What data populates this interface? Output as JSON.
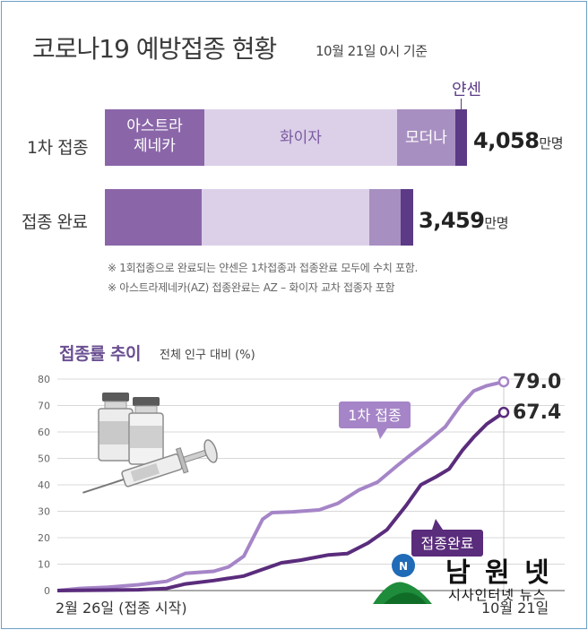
{
  "title": "코로나19 예방접종 현황",
  "date": "10월 21일 0시 기준",
  "bars": {
    "first": {
      "label": "1차 접종",
      "total": "4,058",
      "unit": "만명",
      "segments": {
        "az": "아스트라\n제네카",
        "pfizer": "화이자",
        "moderna": "모더나",
        "janssen": "얀센"
      }
    },
    "complete": {
      "label": "접종 완료",
      "total": "3,459",
      "unit": "만명"
    }
  },
  "notes": [
    "※ 1회접종으로 완료되는 얀센은 1차접종과 접종완료 모두에 수치 포함.",
    "※ 아스트라제네카(AZ) 접종완료는 AZ – 화이자 교차 접종자 포함"
  ],
  "trend": {
    "title": "접종률 추이",
    "subtitle": "전체 인구 대비 (%)"
  },
  "colors": {
    "az": "#8a66a9",
    "pfizer": "#dcd0e9",
    "moderna": "#a88fc1",
    "janssen": "#5c3a86",
    "first_line": "#a585c7",
    "complete_line": "#5a2c7c"
  },
  "chart_data": {
    "type": "line",
    "xlabel": "",
    "ylabel": "전체 인구 대비 (%)",
    "ylim": [
      0,
      80
    ],
    "yticks": [
      0,
      10,
      20,
      30,
      40,
      50,
      60,
      70,
      80
    ],
    "xlabels": {
      "start": "2월 26일 (접종 시작)",
      "end": "10월 21일"
    },
    "x_range": [
      "2021-02-26",
      "2021-10-21"
    ],
    "series": [
      {
        "name": "1차 접종",
        "end_label": "79.0",
        "points": [
          [
            "2021-02-26",
            0
          ],
          [
            "2021-03-10",
            0.8
          ],
          [
            "2021-03-25",
            1.3
          ],
          [
            "2021-04-10",
            2.2
          ],
          [
            "2021-04-25",
            3.5
          ],
          [
            "2021-05-05",
            6.5
          ],
          [
            "2021-05-20",
            7.3
          ],
          [
            "2021-05-28",
            9.0
          ],
          [
            "2021-06-05",
            13
          ],
          [
            "2021-06-10",
            20
          ],
          [
            "2021-06-15",
            27
          ],
          [
            "2021-06-20",
            29.5
          ],
          [
            "2021-07-01",
            29.8
          ],
          [
            "2021-07-15",
            30.5
          ],
          [
            "2021-07-25",
            33
          ],
          [
            "2021-08-05",
            38
          ],
          [
            "2021-08-15",
            41
          ],
          [
            "2021-08-25",
            47
          ],
          [
            "2021-09-01",
            51
          ],
          [
            "2021-09-10",
            56
          ],
          [
            "2021-09-20",
            62
          ],
          [
            "2021-09-28",
            70
          ],
          [
            "2021-10-05",
            75.5
          ],
          [
            "2021-10-12",
            77.5
          ],
          [
            "2021-10-21",
            79.0
          ]
        ]
      },
      {
        "name": "접종완료",
        "end_label": "67.4",
        "points": [
          [
            "2021-02-26",
            0
          ],
          [
            "2021-04-10",
            0.3
          ],
          [
            "2021-04-25",
            0.8
          ],
          [
            "2021-05-05",
            2.5
          ],
          [
            "2021-05-20",
            3.8
          ],
          [
            "2021-06-05",
            5.5
          ],
          [
            "2021-06-15",
            8.0
          ],
          [
            "2021-06-25",
            10.5
          ],
          [
            "2021-07-05",
            11.5
          ],
          [
            "2021-07-20",
            13.5
          ],
          [
            "2021-07-30",
            14.0
          ],
          [
            "2021-08-10",
            18
          ],
          [
            "2021-08-20",
            23
          ],
          [
            "2021-08-30",
            32
          ],
          [
            "2021-09-07",
            40
          ],
          [
            "2021-09-15",
            43
          ],
          [
            "2021-09-22",
            46
          ],
          [
            "2021-09-29",
            53
          ],
          [
            "2021-10-05",
            58
          ],
          [
            "2021-10-12",
            63
          ],
          [
            "2021-10-21",
            67.4
          ]
        ]
      }
    ]
  },
  "watermark": {
    "brand": "남 원 넷",
    "tagline": "시사인터넷 뉴스"
  }
}
